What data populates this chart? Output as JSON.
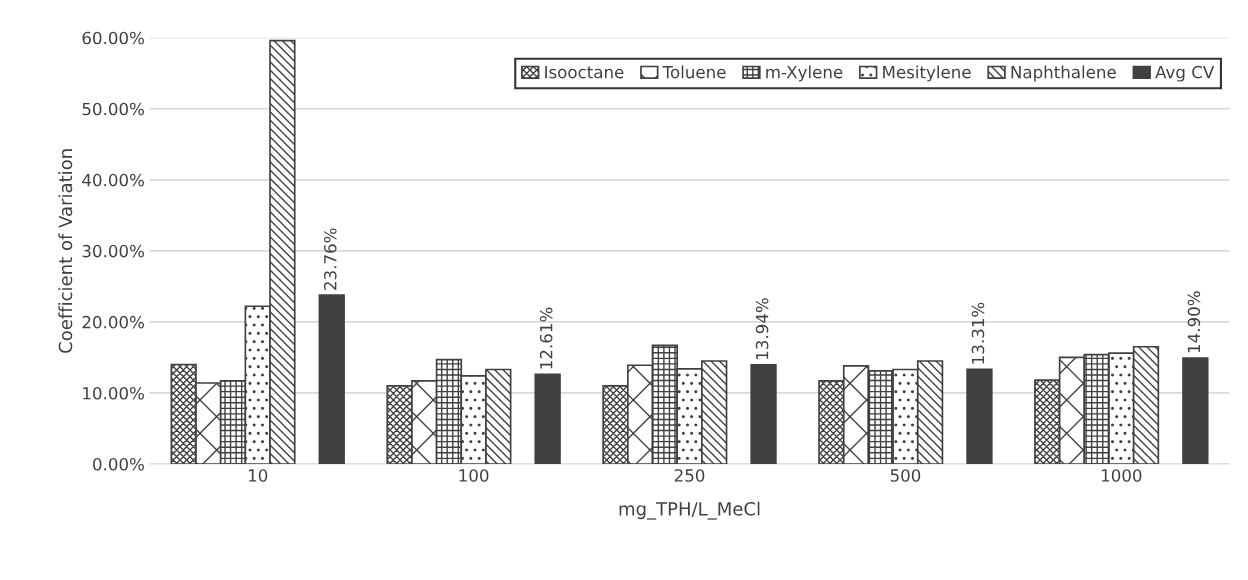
{
  "chart_data": {
    "type": "bar",
    "ylabel": "Coefficient of Variation",
    "xlabel": "mg_TPH/L_MeCl",
    "categories": [
      "10",
      "100",
      "250",
      "500",
      "1000"
    ],
    "series": [
      {
        "name": "Isooctane",
        "color": "#404040",
        "values": [
          14.0,
          11.0,
          11.0,
          11.7,
          11.8
        ]
      },
      {
        "name": "Toluene",
        "color": "#404040",
        "values": [
          11.4,
          11.7,
          13.9,
          13.8,
          15.0
        ]
      },
      {
        "name": "m-Xylene",
        "color": "#404040",
        "values": [
          11.7,
          14.7,
          16.7,
          13.1,
          15.4
        ]
      },
      {
        "name": "Mesitylene",
        "color": "#404040",
        "values": [
          22.2,
          12.4,
          13.4,
          13.3,
          15.6
        ]
      },
      {
        "name": "Naphthalene",
        "color": "#404040",
        "values": [
          59.6,
          13.3,
          14.5,
          14.5,
          16.5
        ]
      },
      {
        "name": "Avg CV",
        "color": "#404040",
        "values": [
          23.76,
          12.61,
          13.94,
          13.31,
          14.9
        ],
        "value_labels": [
          "23.76%",
          "12.61%",
          "13.94%",
          "13.31%",
          "14.90%"
        ]
      }
    ],
    "ylim": [
      0,
      60
    ],
    "yticks": [
      {
        "value": 0,
        "label": "0.00%"
      },
      {
        "value": 10,
        "label": "10.00%"
      },
      {
        "value": 20,
        "label": "20.00%"
      },
      {
        "value": 30,
        "label": "30.00%"
      },
      {
        "value": 40,
        "label": "40.00%"
      },
      {
        "value": 50,
        "label": "50.00%"
      },
      {
        "value": 60,
        "label": "60.00%"
      }
    ],
    "grid": "y",
    "legend": "top right"
  }
}
